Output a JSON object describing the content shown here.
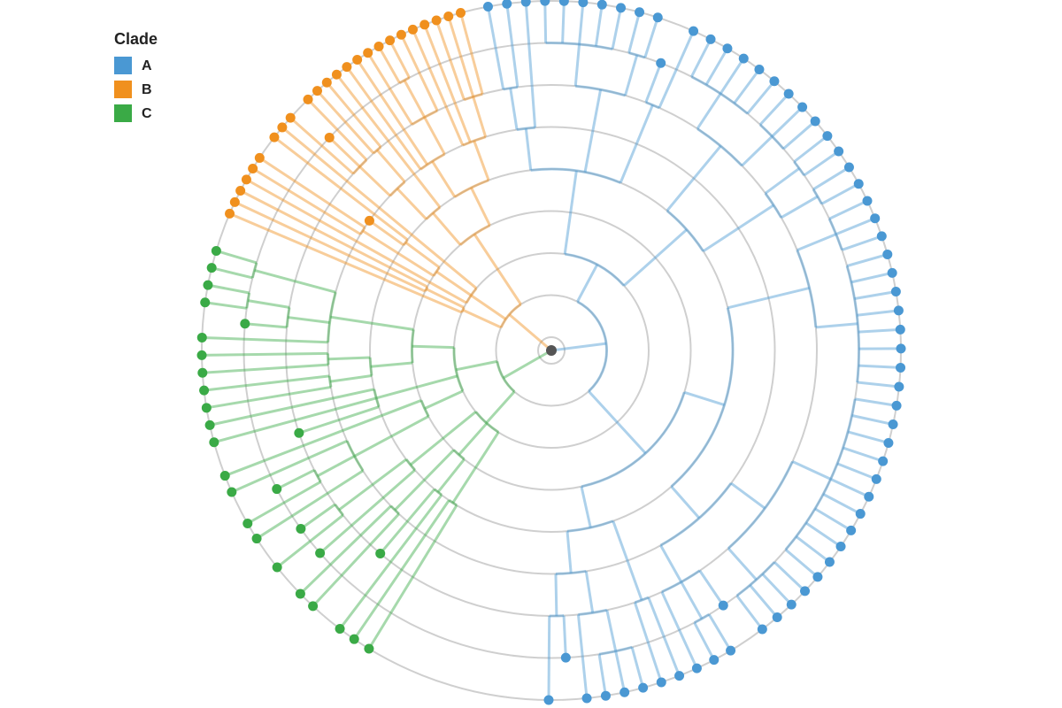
{
  "legend": {
    "title": "Clade",
    "items": [
      {
        "name": "A",
        "color": "#4a98d3"
      },
      {
        "name": "B",
        "color": "#f0901e"
      },
      {
        "name": "C",
        "color": "#3aaa46"
      }
    ]
  }
}
